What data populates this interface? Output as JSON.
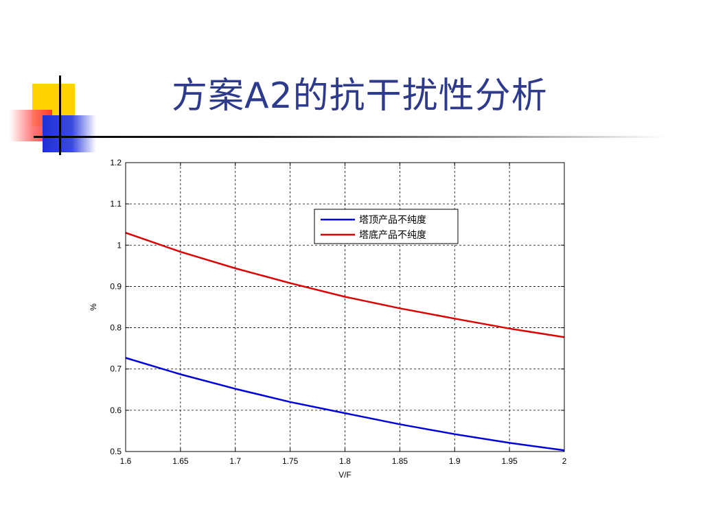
{
  "slide": {
    "title": "方案A2的抗干扰性分析"
  },
  "chart_data": {
    "type": "line",
    "title": "",
    "xlabel": "V/F",
    "ylabel": "%",
    "xlim": [
      1.6,
      2.0
    ],
    "ylim": [
      0.5,
      1.2
    ],
    "xticks": [
      "1.6",
      "1.65",
      "1.7",
      "1.75",
      "1.8",
      "1.85",
      "1.9",
      "1.95",
      "2"
    ],
    "yticks": [
      "0.5",
      "0.6",
      "0.7",
      "0.8",
      "0.9",
      "1",
      "1.1",
      "1.2"
    ],
    "grid": true,
    "legend_position": "top-right",
    "x": [
      1.6,
      1.65,
      1.7,
      1.75,
      1.8,
      1.85,
      1.9,
      1.95,
      2.0
    ],
    "series": [
      {
        "name": "塔顶产品不纯度",
        "color": "#0000dd",
        "values": [
          0.727,
          0.687,
          0.652,
          0.62,
          0.593,
          0.566,
          0.542,
          0.521,
          0.503
        ]
      },
      {
        "name": "塔底产品不纯度",
        "color": "#dd0000",
        "values": [
          1.03,
          0.984,
          0.944,
          0.908,
          0.875,
          0.847,
          0.822,
          0.798,
          0.777
        ]
      }
    ]
  }
}
